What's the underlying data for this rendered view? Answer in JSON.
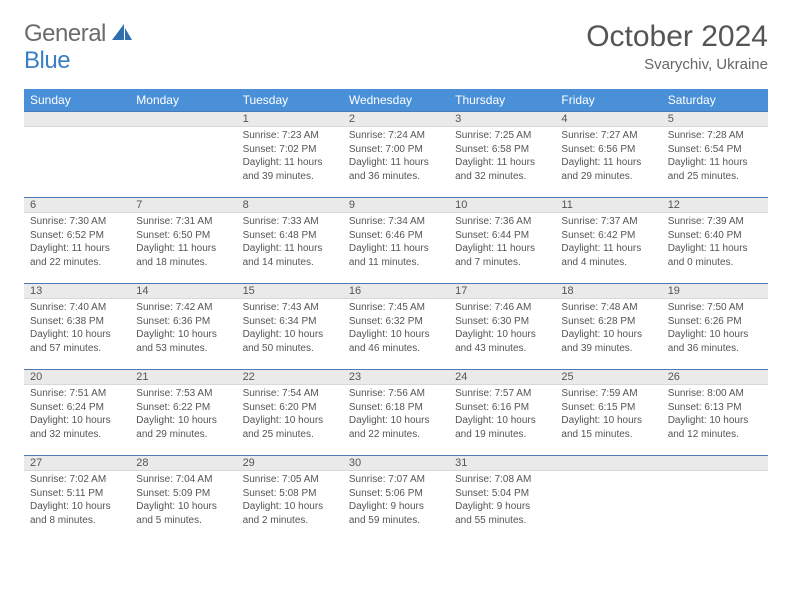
{
  "brand": {
    "part1": "General",
    "part2": "Blue"
  },
  "title": "October 2024",
  "location": "Svarychiv, Ukraine",
  "header_bg": "#4a90d9",
  "header_text": "#ffffff",
  "rule_color": "#4a7bb5",
  "daynum_bg": "#eaeaea",
  "text_color": "#555555",
  "days_of_week": [
    "Sunday",
    "Monday",
    "Tuesday",
    "Wednesday",
    "Thursday",
    "Friday",
    "Saturday"
  ],
  "weeks": [
    [
      null,
      null,
      {
        "n": "1",
        "sr": "7:23 AM",
        "ss": "7:02 PM",
        "dl": "11 hours and 39 minutes."
      },
      {
        "n": "2",
        "sr": "7:24 AM",
        "ss": "7:00 PM",
        "dl": "11 hours and 36 minutes."
      },
      {
        "n": "3",
        "sr": "7:25 AM",
        "ss": "6:58 PM",
        "dl": "11 hours and 32 minutes."
      },
      {
        "n": "4",
        "sr": "7:27 AM",
        "ss": "6:56 PM",
        "dl": "11 hours and 29 minutes."
      },
      {
        "n": "5",
        "sr": "7:28 AM",
        "ss": "6:54 PM",
        "dl": "11 hours and 25 minutes."
      }
    ],
    [
      {
        "n": "6",
        "sr": "7:30 AM",
        "ss": "6:52 PM",
        "dl": "11 hours and 22 minutes."
      },
      {
        "n": "7",
        "sr": "7:31 AM",
        "ss": "6:50 PM",
        "dl": "11 hours and 18 minutes."
      },
      {
        "n": "8",
        "sr": "7:33 AM",
        "ss": "6:48 PM",
        "dl": "11 hours and 14 minutes."
      },
      {
        "n": "9",
        "sr": "7:34 AM",
        "ss": "6:46 PM",
        "dl": "11 hours and 11 minutes."
      },
      {
        "n": "10",
        "sr": "7:36 AM",
        "ss": "6:44 PM",
        "dl": "11 hours and 7 minutes."
      },
      {
        "n": "11",
        "sr": "7:37 AM",
        "ss": "6:42 PM",
        "dl": "11 hours and 4 minutes."
      },
      {
        "n": "12",
        "sr": "7:39 AM",
        "ss": "6:40 PM",
        "dl": "11 hours and 0 minutes."
      }
    ],
    [
      {
        "n": "13",
        "sr": "7:40 AM",
        "ss": "6:38 PM",
        "dl": "10 hours and 57 minutes."
      },
      {
        "n": "14",
        "sr": "7:42 AM",
        "ss": "6:36 PM",
        "dl": "10 hours and 53 minutes."
      },
      {
        "n": "15",
        "sr": "7:43 AM",
        "ss": "6:34 PM",
        "dl": "10 hours and 50 minutes."
      },
      {
        "n": "16",
        "sr": "7:45 AM",
        "ss": "6:32 PM",
        "dl": "10 hours and 46 minutes."
      },
      {
        "n": "17",
        "sr": "7:46 AM",
        "ss": "6:30 PM",
        "dl": "10 hours and 43 minutes."
      },
      {
        "n": "18",
        "sr": "7:48 AM",
        "ss": "6:28 PM",
        "dl": "10 hours and 39 minutes."
      },
      {
        "n": "19",
        "sr": "7:50 AM",
        "ss": "6:26 PM",
        "dl": "10 hours and 36 minutes."
      }
    ],
    [
      {
        "n": "20",
        "sr": "7:51 AM",
        "ss": "6:24 PM",
        "dl": "10 hours and 32 minutes."
      },
      {
        "n": "21",
        "sr": "7:53 AM",
        "ss": "6:22 PM",
        "dl": "10 hours and 29 minutes."
      },
      {
        "n": "22",
        "sr": "7:54 AM",
        "ss": "6:20 PM",
        "dl": "10 hours and 25 minutes."
      },
      {
        "n": "23",
        "sr": "7:56 AM",
        "ss": "6:18 PM",
        "dl": "10 hours and 22 minutes."
      },
      {
        "n": "24",
        "sr": "7:57 AM",
        "ss": "6:16 PM",
        "dl": "10 hours and 19 minutes."
      },
      {
        "n": "25",
        "sr": "7:59 AM",
        "ss": "6:15 PM",
        "dl": "10 hours and 15 minutes."
      },
      {
        "n": "26",
        "sr": "8:00 AM",
        "ss": "6:13 PM",
        "dl": "10 hours and 12 minutes."
      }
    ],
    [
      {
        "n": "27",
        "sr": "7:02 AM",
        "ss": "5:11 PM",
        "dl": "10 hours and 8 minutes."
      },
      {
        "n": "28",
        "sr": "7:04 AM",
        "ss": "5:09 PM",
        "dl": "10 hours and 5 minutes."
      },
      {
        "n": "29",
        "sr": "7:05 AM",
        "ss": "5:08 PM",
        "dl": "10 hours and 2 minutes."
      },
      {
        "n": "30",
        "sr": "7:07 AM",
        "ss": "5:06 PM",
        "dl": "9 hours and 59 minutes."
      },
      {
        "n": "31",
        "sr": "7:08 AM",
        "ss": "5:04 PM",
        "dl": "9 hours and 55 minutes."
      },
      null,
      null
    ]
  ],
  "labels": {
    "sunrise": "Sunrise:",
    "sunset": "Sunset:",
    "daylight": "Daylight:"
  }
}
